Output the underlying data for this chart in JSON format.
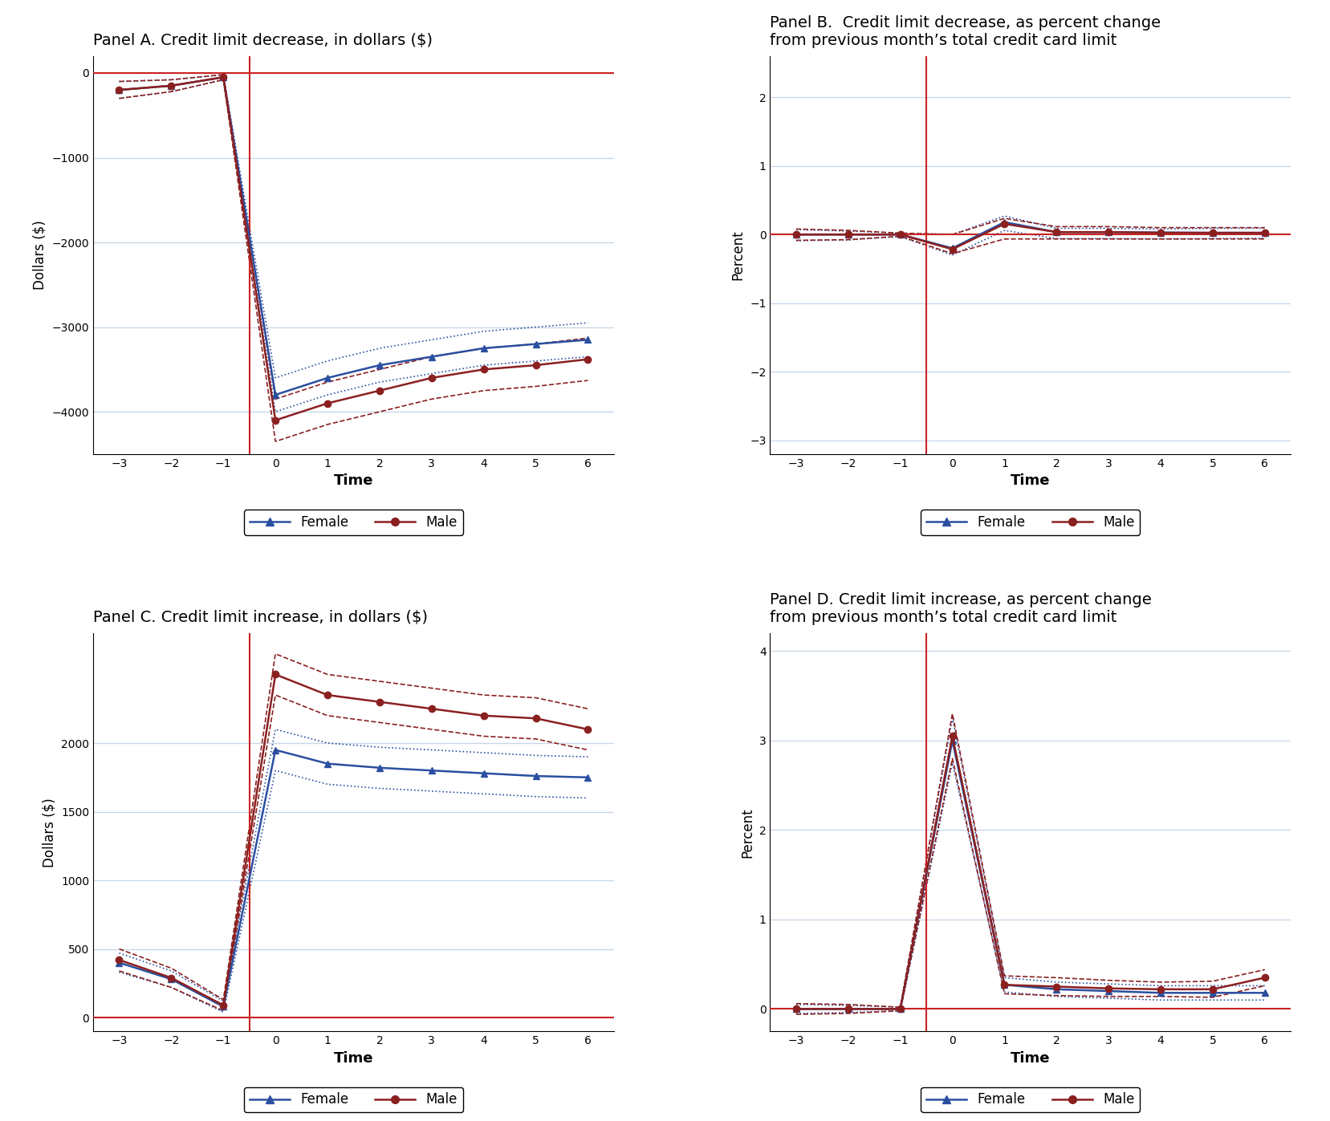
{
  "time": [
    -3,
    -2,
    -1,
    0,
    1,
    2,
    3,
    4,
    5,
    6
  ],
  "panel_A": {
    "title": "Panel A. Credit limit decrease, in dollars ($)",
    "ylabel": "Dollars ($)",
    "xlabel": "Time",
    "ylim": [
      -4500,
      200
    ],
    "yticks": [
      0,
      -1000,
      -2000,
      -3000,
      -4000
    ],
    "female_mean": [
      -200,
      -150,
      -50,
      -3800,
      -3600,
      -3450,
      -3350,
      -3250,
      -3200,
      -3150
    ],
    "female_ci_upper": [
      -100,
      -80,
      -20,
      -3600,
      -3400,
      -3250,
      -3150,
      -3050,
      -3000,
      -2950
    ],
    "female_ci_lower": [
      -300,
      -220,
      -80,
      -4000,
      -3800,
      -3650,
      -3550,
      -3450,
      -3400,
      -3350
    ],
    "male_mean": [
      -200,
      -150,
      -50,
      -4100,
      -3900,
      -3750,
      -3600,
      -3500,
      -3450,
      -3380
    ],
    "male_ci_upper": [
      -100,
      -80,
      -20,
      -3850,
      -3650,
      -3500,
      -3350,
      -3250,
      -3200,
      -3130
    ],
    "male_ci_lower": [
      -300,
      -220,
      -80,
      -4350,
      -4150,
      -4000,
      -3850,
      -3750,
      -3700,
      -3630
    ]
  },
  "panel_B": {
    "title": "Panel B.  Credit limit decrease, as percent change\nfrom previous month’s total credit card limit",
    "ylabel": "Percent",
    "xlabel": "Time",
    "ylim": [
      -3.2,
      2.6
    ],
    "yticks": [
      -3,
      -2,
      -1,
      0,
      1,
      2
    ],
    "female_mean": [
      0.0,
      0.0,
      0.0,
      -0.2,
      0.18,
      0.035,
      0.035,
      0.03,
      0.025,
      0.025
    ],
    "female_ci_upper": [
      0.07,
      0.05,
      0.02,
      0.0,
      0.27,
      0.09,
      0.09,
      0.08,
      0.09,
      0.092
    ],
    "female_ci_lower": [
      -0.09,
      -0.08,
      -0.03,
      -0.3,
      0.06,
      -0.06,
      -0.06,
      -0.065,
      -0.06,
      -0.055
    ],
    "male_mean": [
      0.0,
      0.0,
      0.0,
      -0.215,
      0.155,
      0.035,
      0.035,
      0.025,
      0.025,
      0.025
    ],
    "male_ci_upper": [
      0.08,
      0.06,
      0.02,
      0.0,
      0.235,
      0.115,
      0.115,
      0.1,
      0.1,
      0.1
    ],
    "male_ci_lower": [
      -0.085,
      -0.075,
      -0.025,
      -0.28,
      -0.065,
      -0.065,
      -0.065,
      -0.065,
      -0.065,
      -0.065
    ]
  },
  "panel_C": {
    "title": "Panel C. Credit limit increase, in dollars ($)",
    "ylabel": "Dollars ($)",
    "xlabel": "Time",
    "ylim": [
      -100,
      2800
    ],
    "yticks": [
      0,
      500,
      1000,
      1500,
      2000
    ],
    "female_mean": [
      400,
      280,
      80,
      1950,
      1850,
      1820,
      1800,
      1780,
      1760,
      1750
    ],
    "female_ci_upper": [
      470,
      340,
      120,
      2100,
      2000,
      1970,
      1950,
      1930,
      1910,
      1900
    ],
    "female_ci_lower": [
      330,
      220,
      40,
      1800,
      1700,
      1670,
      1650,
      1630,
      1610,
      1600
    ],
    "male_mean": [
      420,
      290,
      90,
      2500,
      2350,
      2300,
      2250,
      2200,
      2180,
      2100
    ],
    "male_ci_upper": [
      500,
      360,
      130,
      2650,
      2500,
      2450,
      2400,
      2350,
      2330,
      2250
    ],
    "male_ci_lower": [
      340,
      220,
      50,
      2350,
      2200,
      2150,
      2100,
      2050,
      2030,
      1950
    ]
  },
  "panel_D": {
    "title": "Panel D. Credit limit increase, as percent change\nfrom previous month’s total credit card limit",
    "ylabel": "Percent",
    "xlabel": "Time",
    "ylim": [
      -0.25,
      4.2
    ],
    "yticks": [
      0,
      1,
      2,
      3,
      4
    ],
    "female_mean": [
      0.0,
      0.0,
      0.0,
      3.0,
      0.27,
      0.22,
      0.2,
      0.18,
      0.18,
      0.18
    ],
    "female_ci_upper": [
      0.05,
      0.04,
      0.02,
      3.25,
      0.35,
      0.3,
      0.28,
      0.26,
      0.26,
      0.26
    ],
    "female_ci_lower": [
      -0.05,
      -0.04,
      -0.02,
      2.75,
      0.19,
      0.14,
      0.12,
      0.1,
      0.1,
      0.1
    ],
    "male_mean": [
      0.0,
      0.0,
      0.0,
      3.05,
      0.27,
      0.25,
      0.23,
      0.22,
      0.22,
      0.35
    ],
    "male_ci_upper": [
      0.06,
      0.05,
      0.02,
      3.3,
      0.37,
      0.35,
      0.32,
      0.3,
      0.31,
      0.44
    ],
    "male_ci_lower": [
      -0.06,
      -0.05,
      -0.02,
      2.8,
      0.17,
      0.15,
      0.14,
      0.14,
      0.13,
      0.26
    ]
  },
  "female_color": "#2b4fa0",
  "male_color": "#8b2020",
  "vline_color": "#cc2222",
  "hline_color": "#cc2222",
  "grid_color": "#c8d8e8"
}
